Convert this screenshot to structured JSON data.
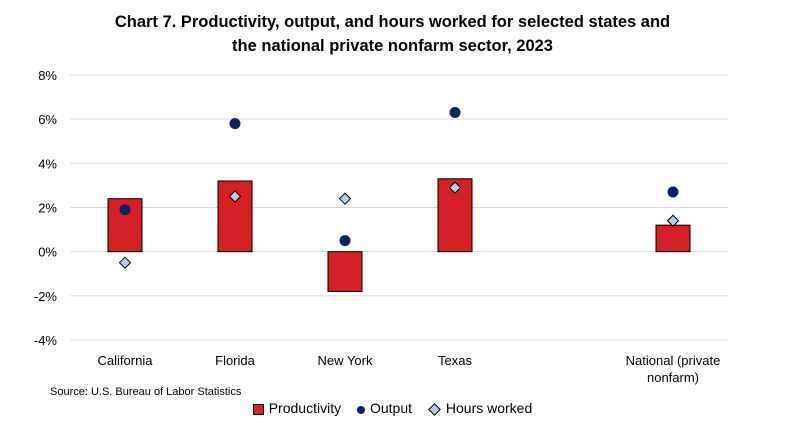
{
  "title_line1": "Chart 7. Productivity, output, and hours worked for selected states and",
  "title_line2": "the national private nonfarm sector, 2023",
  "source": "Source: U.S. Bureau of Labor Statistics",
  "chart_data": {
    "type": "bar",
    "title": "Chart 7. Productivity, output, and hours worked for selected states and the national private nonfarm sector, 2023",
    "categories": [
      "California",
      "Florida",
      "New York",
      "Texas",
      "National (private nonfarm)"
    ],
    "category_label_lines": [
      [
        "California"
      ],
      [
        "Florida"
      ],
      [
        "New York"
      ],
      [
        "Texas"
      ],
      [
        "National (private",
        "nonfarm)"
      ]
    ],
    "series": [
      {
        "name": "Productivity",
        "mark": "bar",
        "color": "#d52027",
        "values": [
          2.4,
          3.2,
          -1.8,
          3.3,
          1.2
        ]
      },
      {
        "name": "Output",
        "mark": "circle",
        "color": "#0b2265",
        "values": [
          1.9,
          5.8,
          0.5,
          6.3,
          2.7
        ]
      },
      {
        "name": "Hours worked",
        "mark": "diamond",
        "color": "#b8cce4",
        "values": [
          -0.5,
          2.5,
          2.4,
          2.9,
          1.4
        ]
      }
    ],
    "ylim": [
      -4,
      8
    ],
    "yticks": [
      -4,
      -2,
      0,
      2,
      4,
      6,
      8
    ],
    "ytick_labels": [
      "-4%",
      "-2%",
      "0%",
      "2%",
      "4%",
      "6%",
      "8%"
    ],
    "grid": true,
    "legend_position": "bottom",
    "xlabel": "",
    "ylabel": ""
  }
}
